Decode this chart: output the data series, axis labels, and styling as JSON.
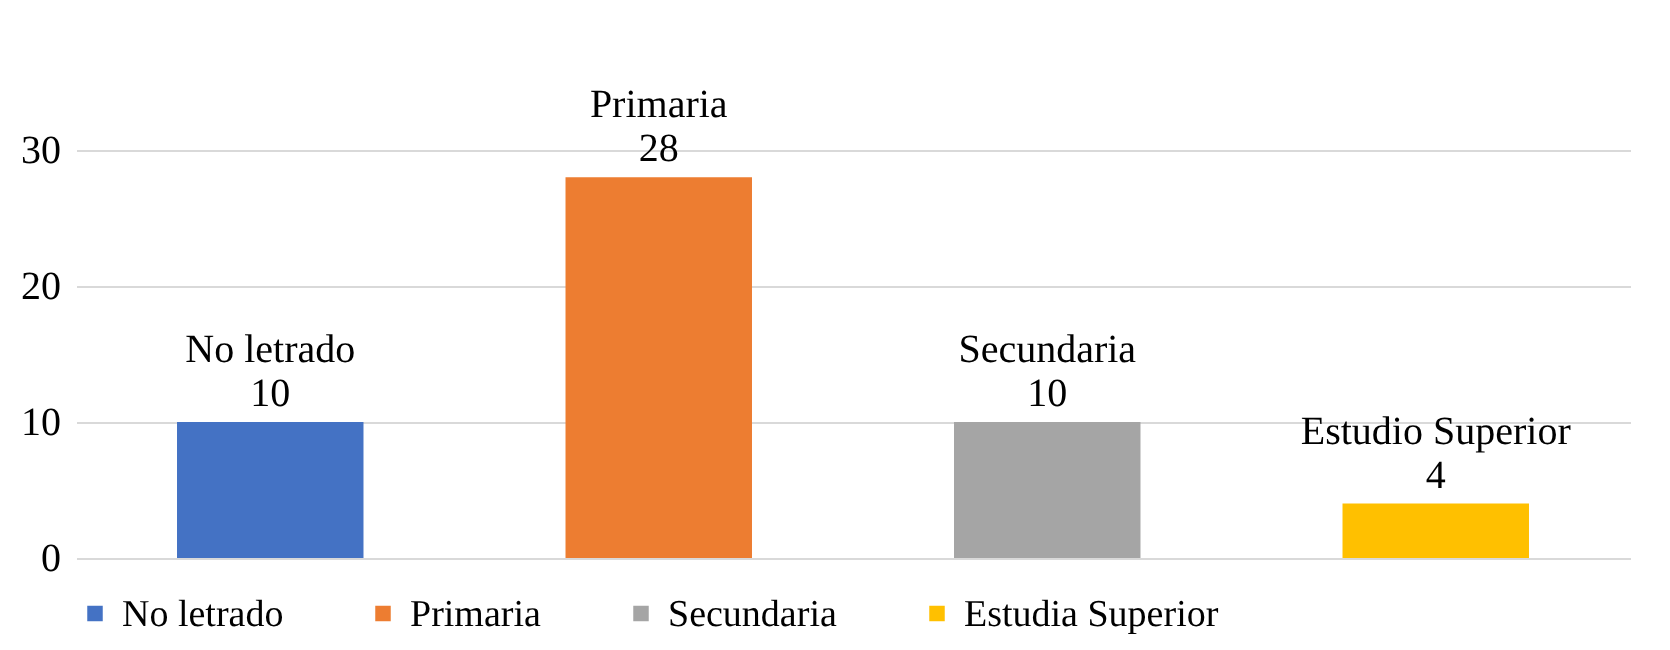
{
  "chart_data": {
    "type": "bar",
    "categories": [
      null
    ],
    "series": [
      {
        "name": "No letrado",
        "color": "#4472c4",
        "values": [
          10
        ]
      },
      {
        "name": "Primaria",
        "color": "#ed7d31",
        "values": [
          28
        ]
      },
      {
        "name": "Secundaria",
        "color": "#a5a5a5",
        "values": [
          10
        ]
      },
      {
        "name": "Estudia Superior",
        "color": "#ffc000",
        "values": [
          4
        ]
      }
    ],
    "data_labels": true,
    "annotations": [
      "No letrado",
      "Primaria",
      "Secundaria",
      "Estudio Superior"
    ],
    "ylim": [
      0,
      30
    ],
    "yticks": [
      0,
      10,
      20,
      30
    ],
    "grid": "y",
    "legend": "bottom",
    "tick_labels": "y"
  }
}
